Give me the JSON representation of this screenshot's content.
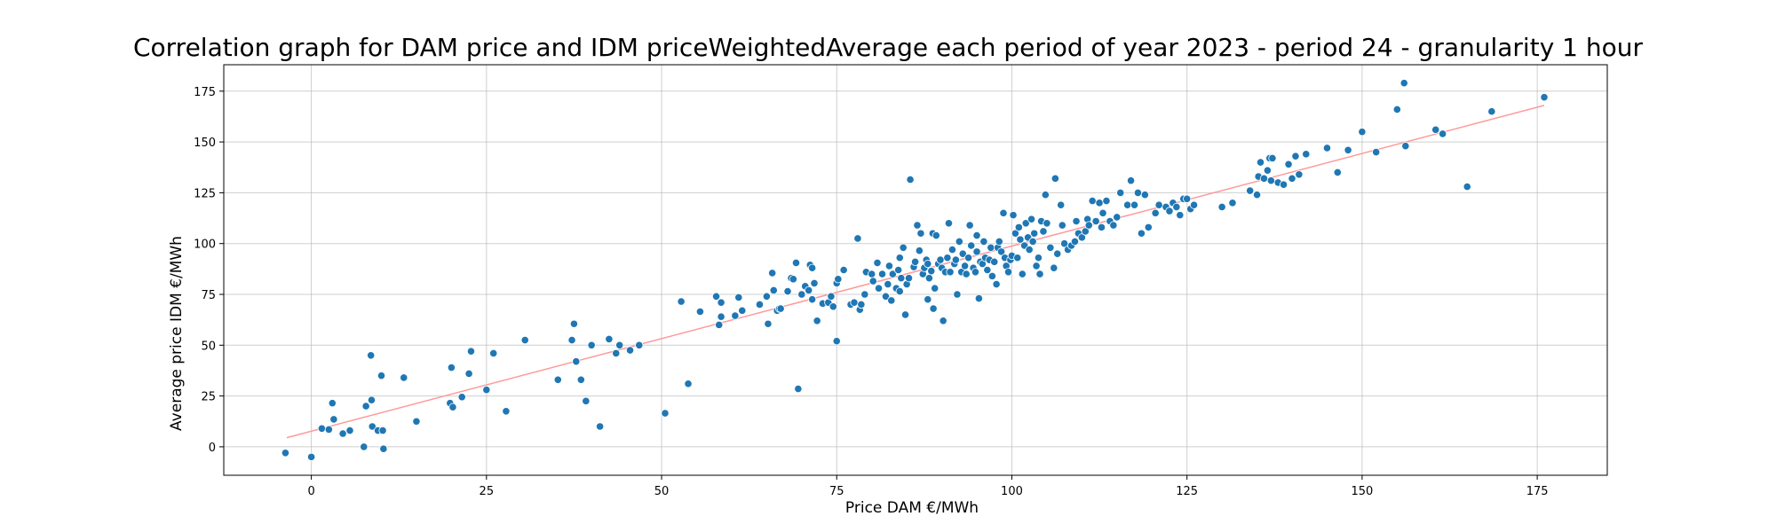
{
  "chart_data": {
    "type": "scatter",
    "title": "Correlation graph for DAM price and IDM priceWeightedAverage each period of year 2023 - period 24 - granularity 1 hour",
    "xlabel": "Price DAM €/MWh",
    "ylabel": "Average price IDM €/MWh",
    "xlim": [
      -12.5,
      185
    ],
    "ylim": [
      -14,
      188
    ],
    "xticks": [
      0,
      25,
      50,
      75,
      100,
      125,
      150,
      175
    ],
    "yticks": [
      0,
      25,
      50,
      75,
      100,
      125,
      150,
      175
    ],
    "grid": true,
    "colors": {
      "points": "#1f77b4",
      "trend": "#ff9999"
    },
    "trendline": {
      "x": [
        -3.5,
        176
      ],
      "y": [
        4.5,
        168
      ]
    },
    "points": [
      [
        -3.7,
        -3
      ],
      [
        0,
        -5
      ],
      [
        1.5,
        9
      ],
      [
        2.5,
        8.5
      ],
      [
        3,
        21.5
      ],
      [
        3.2,
        13.5
      ],
      [
        4.5,
        6.5
      ],
      [
        5.5,
        8
      ],
      [
        7.5,
        0
      ],
      [
        7.8,
        20
      ],
      [
        8.5,
        45
      ],
      [
        8.6,
        23
      ],
      [
        8.7,
        10
      ],
      [
        9.5,
        8
      ],
      [
        10,
        35
      ],
      [
        10.2,
        8
      ],
      [
        10.3,
        -1
      ],
      [
        13.2,
        34
      ],
      [
        15,
        12.5
      ],
      [
        19.8,
        21.5
      ],
      [
        20,
        39
      ],
      [
        20.2,
        19.5
      ],
      [
        21.5,
        24.5
      ],
      [
        22.5,
        36
      ],
      [
        22.8,
        47
      ],
      [
        25,
        28
      ],
      [
        26,
        46
      ],
      [
        27.8,
        17.5
      ],
      [
        30.5,
        52.5
      ],
      [
        35.2,
        33
      ],
      [
        37.2,
        52.5
      ],
      [
        37.5,
        60.5
      ],
      [
        37.8,
        42
      ],
      [
        38.5,
        33
      ],
      [
        39.2,
        22.5
      ],
      [
        40,
        50
      ],
      [
        41.2,
        10
      ],
      [
        42.5,
        53
      ],
      [
        43.5,
        46
      ],
      [
        44,
        50
      ],
      [
        45.5,
        47.5
      ],
      [
        46.8,
        50
      ],
      [
        50.5,
        16.5
      ],
      [
        52.8,
        71.5
      ],
      [
        53.8,
        31
      ],
      [
        55.5,
        66.5
      ],
      [
        57.8,
        74
      ],
      [
        58.2,
        60
      ],
      [
        58.5,
        64
      ],
      [
        58.5,
        71
      ],
      [
        60.5,
        64.5
      ],
      [
        61,
        73.5
      ],
      [
        61.5,
        67
      ],
      [
        64,
        70
      ],
      [
        65,
        74
      ],
      [
        65.2,
        60.5
      ],
      [
        65.8,
        85.5
      ],
      [
        66,
        77
      ],
      [
        66.5,
        67
      ],
      [
        66.8,
        68
      ],
      [
        67,
        68
      ],
      [
        68,
        76.5
      ],
      [
        68.5,
        83
      ],
      [
        68.8,
        82.5
      ],
      [
        69.2,
        90.5
      ],
      [
        69.5,
        28.5
      ],
      [
        70,
        75
      ],
      [
        70.5,
        79
      ],
      [
        71,
        77
      ],
      [
        71.2,
        89.5
      ],
      [
        71.5,
        88
      ],
      [
        71.5,
        72.5
      ],
      [
        71.8,
        80.5
      ],
      [
        72.2,
        62
      ],
      [
        73,
        70.5
      ],
      [
        73.8,
        71
      ],
      [
        74.2,
        74
      ],
      [
        74.5,
        69
      ],
      [
        75,
        52
      ],
      [
        75,
        80.5
      ],
      [
        75.2,
        82.5
      ],
      [
        76,
        87
      ],
      [
        77,
        70
      ],
      [
        77.5,
        71
      ],
      [
        78,
        102.5
      ],
      [
        78.3,
        67.5
      ],
      [
        78.5,
        70
      ],
      [
        79,
        75
      ],
      [
        79.2,
        86
      ],
      [
        80,
        85
      ],
      [
        80.2,
        81.5
      ],
      [
        80.8,
        90.5
      ],
      [
        81,
        78
      ],
      [
        81.5,
        85
      ],
      [
        82,
        74
      ],
      [
        82.3,
        80
      ],
      [
        82.5,
        89
      ],
      [
        82.8,
        72
      ],
      [
        83,
        85
      ],
      [
        83.5,
        78
      ],
      [
        83.8,
        87
      ],
      [
        84,
        76.5
      ],
      [
        84,
        93
      ],
      [
        84.2,
        83
      ],
      [
        84.5,
        98
      ],
      [
        84.8,
        65
      ],
      [
        85,
        80
      ],
      [
        85.3,
        83
      ],
      [
        85.5,
        131.5
      ],
      [
        86,
        88.5
      ],
      [
        86.2,
        91
      ],
      [
        86.5,
        109
      ],
      [
        86.8,
        96.5
      ],
      [
        87,
        105
      ],
      [
        87.3,
        85
      ],
      [
        87.5,
        88
      ],
      [
        87.8,
        92
      ],
      [
        88,
        90
      ],
      [
        88,
        72.5
      ],
      [
        88.2,
        83
      ],
      [
        88.5,
        86.5
      ],
      [
        88.7,
        105
      ],
      [
        88.8,
        68
      ],
      [
        89,
        78
      ],
      [
        89.2,
        104
      ],
      [
        89.5,
        90
      ],
      [
        89.8,
        92
      ],
      [
        90,
        88
      ],
      [
        90.2,
        62
      ],
      [
        90.5,
        86
      ],
      [
        90.8,
        93
      ],
      [
        91,
        110
      ],
      [
        91.2,
        86
      ],
      [
        91.5,
        97
      ],
      [
        91.8,
        90
      ],
      [
        92,
        92
      ],
      [
        92.2,
        75
      ],
      [
        92.5,
        101
      ],
      [
        92.8,
        86
      ],
      [
        93,
        95
      ],
      [
        93.3,
        89
      ],
      [
        93.5,
        85
      ],
      [
        93.8,
        93
      ],
      [
        94,
        109
      ],
      [
        94.2,
        99
      ],
      [
        94.5,
        88
      ],
      [
        94.8,
        86
      ],
      [
        95,
        96
      ],
      [
        95,
        104
      ],
      [
        95.3,
        73
      ],
      [
        95.5,
        91
      ],
      [
        95.8,
        90
      ],
      [
        96,
        101
      ],
      [
        96.2,
        93
      ],
      [
        96.5,
        87
      ],
      [
        96.8,
        92
      ],
      [
        97,
        98
      ],
      [
        97.2,
        84
      ],
      [
        97.5,
        91
      ],
      [
        97.8,
        80
      ],
      [
        98,
        98
      ],
      [
        98.2,
        101
      ],
      [
        98.5,
        96
      ],
      [
        98.8,
        115
      ],
      [
        99,
        93
      ],
      [
        99.2,
        89
      ],
      [
        99.5,
        86
      ],
      [
        99.8,
        92
      ],
      [
        100,
        94
      ],
      [
        100.2,
        114
      ],
      [
        100.5,
        105
      ],
      [
        100.8,
        93
      ],
      [
        101,
        108
      ],
      [
        101.2,
        102
      ],
      [
        101.5,
        85
      ],
      [
        101.8,
        99
      ],
      [
        102,
        110
      ],
      [
        102.3,
        103
      ],
      [
        102.5,
        97
      ],
      [
        102.8,
        112
      ],
      [
        103,
        101
      ],
      [
        103.2,
        105
      ],
      [
        103.5,
        89
      ],
      [
        103.8,
        93
      ],
      [
        104,
        85
      ],
      [
        104.2,
        111
      ],
      [
        104.5,
        106
      ],
      [
        104.8,
        124
      ],
      [
        105,
        110
      ],
      [
        105.5,
        98
      ],
      [
        106,
        88
      ],
      [
        106.2,
        132
      ],
      [
        106.5,
        95
      ],
      [
        107,
        119
      ],
      [
        107.2,
        109
      ],
      [
        107.5,
        100
      ],
      [
        108,
        97
      ],
      [
        108.5,
        99
      ],
      [
        109,
        101
      ],
      [
        109.2,
        111
      ],
      [
        109.5,
        105
      ],
      [
        110,
        103
      ],
      [
        110.5,
        106
      ],
      [
        110.8,
        112
      ],
      [
        111,
        109
      ],
      [
        111.5,
        121
      ],
      [
        112,
        111
      ],
      [
        112.5,
        120
      ],
      [
        112.8,
        108
      ],
      [
        113,
        115
      ],
      [
        113.5,
        121
      ],
      [
        114,
        111
      ],
      [
        114.5,
        109
      ],
      [
        115,
        113
      ],
      [
        115.5,
        125
      ],
      [
        116.5,
        119
      ],
      [
        117,
        131
      ],
      [
        117.5,
        119
      ],
      [
        118,
        125
      ],
      [
        118.5,
        105
      ],
      [
        119,
        124
      ],
      [
        119.5,
        108
      ],
      [
        120.5,
        115
      ],
      [
        121,
        119
      ],
      [
        122,
        118
      ],
      [
        122.5,
        116
      ],
      [
        123,
        120
      ],
      [
        123.5,
        118
      ],
      [
        124,
        114
      ],
      [
        124.5,
        122
      ],
      [
        125,
        122
      ],
      [
        125.5,
        117
      ],
      [
        126,
        119
      ],
      [
        130,
        118
      ],
      [
        131.5,
        120
      ],
      [
        134,
        126
      ],
      [
        135,
        124
      ],
      [
        135.2,
        133
      ],
      [
        135.5,
        140
      ],
      [
        136,
        132
      ],
      [
        136.5,
        136
      ],
      [
        136.8,
        142
      ],
      [
        137,
        131
      ],
      [
        137.2,
        142
      ],
      [
        138,
        130
      ],
      [
        138.8,
        129
      ],
      [
        139.5,
        139
      ],
      [
        140,
        132
      ],
      [
        140.5,
        143
      ],
      [
        141,
        134
      ],
      [
        142,
        144
      ],
      [
        145,
        147
      ],
      [
        146.5,
        135
      ],
      [
        148,
        146
      ],
      [
        150,
        155
      ],
      [
        152,
        145
      ],
      [
        155,
        166
      ],
      [
        156,
        179
      ],
      [
        156.2,
        148
      ],
      [
        160.5,
        156
      ],
      [
        161.5,
        154
      ],
      [
        165,
        128
      ],
      [
        168.5,
        165
      ],
      [
        176,
        172
      ]
    ]
  }
}
